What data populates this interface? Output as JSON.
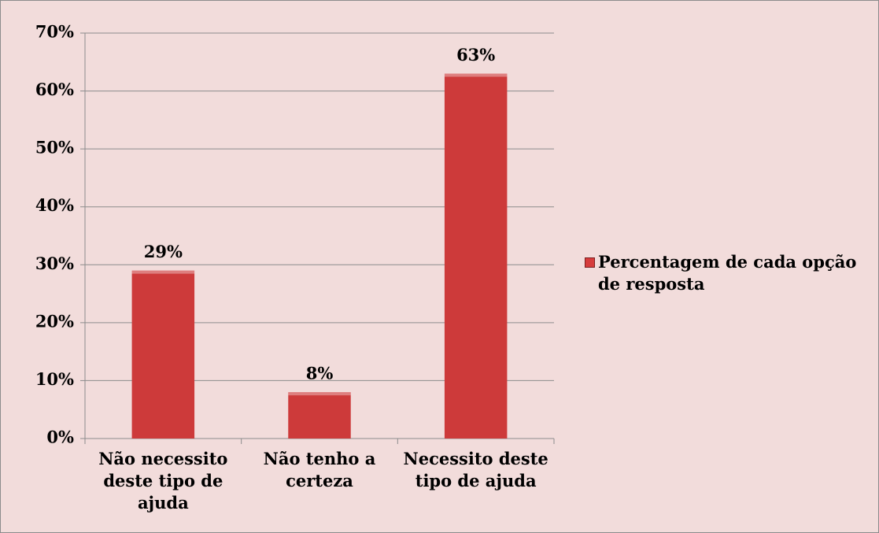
{
  "chart_data": {
    "type": "bar",
    "categories": [
      "Não necessito deste tipo de ajuda",
      "Não tenho a certeza",
      "Necessito deste tipo de ajuda"
    ],
    "series": [
      {
        "name": "Percentagem de cada opção de resposta",
        "color": "#d63c3c",
        "values": [
          29,
          8,
          63
        ],
        "value_labels": [
          "29%",
          "8%",
          "63%"
        ]
      }
    ],
    "ylim": [
      0,
      70
    ],
    "yticks": [
      {
        "value": 0,
        "label": "0%"
      },
      {
        "value": 10,
        "label": "10%"
      },
      {
        "value": 20,
        "label": "20%"
      },
      {
        "value": 30,
        "label": "30%"
      },
      {
        "value": 40,
        "label": "40%"
      },
      {
        "value": 50,
        "label": "50%"
      },
      {
        "value": 60,
        "label": "60%"
      },
      {
        "value": 70,
        "label": "70%"
      }
    ],
    "grid": true,
    "legend": "right"
  }
}
